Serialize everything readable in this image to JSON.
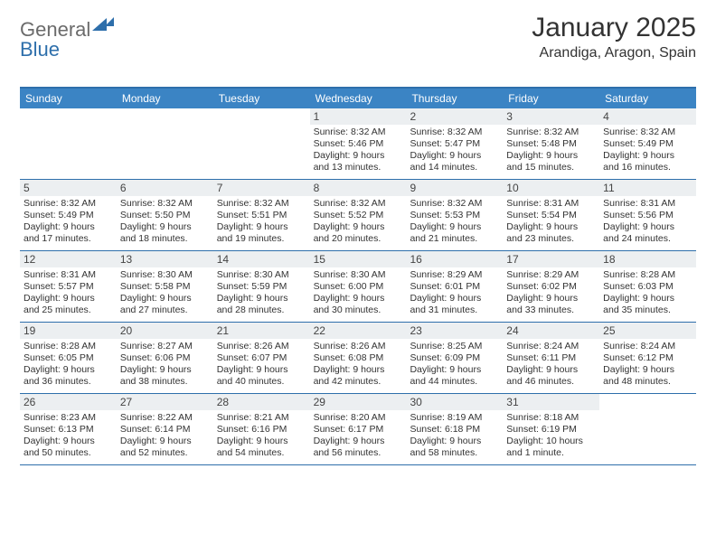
{
  "brand": {
    "part1": "General",
    "part2": "Blue"
  },
  "title": "January 2025",
  "location": "Arandiga, Aragon, Spain",
  "colors": {
    "header_bg": "#3b84c4",
    "accent": "#2e6fab",
    "daynum_bg": "#eceff1",
    "text": "#333333",
    "page_bg": "#ffffff"
  },
  "weekdays": [
    "Sunday",
    "Monday",
    "Tuesday",
    "Wednesday",
    "Thursday",
    "Friday",
    "Saturday"
  ],
  "weeks": [
    [
      null,
      null,
      null,
      {
        "n": "1",
        "sr": "8:32 AM",
        "ss": "5:46 PM",
        "dl": "9 hours and 13 minutes."
      },
      {
        "n": "2",
        "sr": "8:32 AM",
        "ss": "5:47 PM",
        "dl": "9 hours and 14 minutes."
      },
      {
        "n": "3",
        "sr": "8:32 AM",
        "ss": "5:48 PM",
        "dl": "9 hours and 15 minutes."
      },
      {
        "n": "4",
        "sr": "8:32 AM",
        "ss": "5:49 PM",
        "dl": "9 hours and 16 minutes."
      }
    ],
    [
      {
        "n": "5",
        "sr": "8:32 AM",
        "ss": "5:49 PM",
        "dl": "9 hours and 17 minutes."
      },
      {
        "n": "6",
        "sr": "8:32 AM",
        "ss": "5:50 PM",
        "dl": "9 hours and 18 minutes."
      },
      {
        "n": "7",
        "sr": "8:32 AM",
        "ss": "5:51 PM",
        "dl": "9 hours and 19 minutes."
      },
      {
        "n": "8",
        "sr": "8:32 AM",
        "ss": "5:52 PM",
        "dl": "9 hours and 20 minutes."
      },
      {
        "n": "9",
        "sr": "8:32 AM",
        "ss": "5:53 PM",
        "dl": "9 hours and 21 minutes."
      },
      {
        "n": "10",
        "sr": "8:31 AM",
        "ss": "5:54 PM",
        "dl": "9 hours and 23 minutes."
      },
      {
        "n": "11",
        "sr": "8:31 AM",
        "ss": "5:56 PM",
        "dl": "9 hours and 24 minutes."
      }
    ],
    [
      {
        "n": "12",
        "sr": "8:31 AM",
        "ss": "5:57 PM",
        "dl": "9 hours and 25 minutes."
      },
      {
        "n": "13",
        "sr": "8:30 AM",
        "ss": "5:58 PM",
        "dl": "9 hours and 27 minutes."
      },
      {
        "n": "14",
        "sr": "8:30 AM",
        "ss": "5:59 PM",
        "dl": "9 hours and 28 minutes."
      },
      {
        "n": "15",
        "sr": "8:30 AM",
        "ss": "6:00 PM",
        "dl": "9 hours and 30 minutes."
      },
      {
        "n": "16",
        "sr": "8:29 AM",
        "ss": "6:01 PM",
        "dl": "9 hours and 31 minutes."
      },
      {
        "n": "17",
        "sr": "8:29 AM",
        "ss": "6:02 PM",
        "dl": "9 hours and 33 minutes."
      },
      {
        "n": "18",
        "sr": "8:28 AM",
        "ss": "6:03 PM",
        "dl": "9 hours and 35 minutes."
      }
    ],
    [
      {
        "n": "19",
        "sr": "8:28 AM",
        "ss": "6:05 PM",
        "dl": "9 hours and 36 minutes."
      },
      {
        "n": "20",
        "sr": "8:27 AM",
        "ss": "6:06 PM",
        "dl": "9 hours and 38 minutes."
      },
      {
        "n": "21",
        "sr": "8:26 AM",
        "ss": "6:07 PM",
        "dl": "9 hours and 40 minutes."
      },
      {
        "n": "22",
        "sr": "8:26 AM",
        "ss": "6:08 PM",
        "dl": "9 hours and 42 minutes."
      },
      {
        "n": "23",
        "sr": "8:25 AM",
        "ss": "6:09 PM",
        "dl": "9 hours and 44 minutes."
      },
      {
        "n": "24",
        "sr": "8:24 AM",
        "ss": "6:11 PM",
        "dl": "9 hours and 46 minutes."
      },
      {
        "n": "25",
        "sr": "8:24 AM",
        "ss": "6:12 PM",
        "dl": "9 hours and 48 minutes."
      }
    ],
    [
      {
        "n": "26",
        "sr": "8:23 AM",
        "ss": "6:13 PM",
        "dl": "9 hours and 50 minutes."
      },
      {
        "n": "27",
        "sr": "8:22 AM",
        "ss": "6:14 PM",
        "dl": "9 hours and 52 minutes."
      },
      {
        "n": "28",
        "sr": "8:21 AM",
        "ss": "6:16 PM",
        "dl": "9 hours and 54 minutes."
      },
      {
        "n": "29",
        "sr": "8:20 AM",
        "ss": "6:17 PM",
        "dl": "9 hours and 56 minutes."
      },
      {
        "n": "30",
        "sr": "8:19 AM",
        "ss": "6:18 PM",
        "dl": "9 hours and 58 minutes."
      },
      {
        "n": "31",
        "sr": "8:18 AM",
        "ss": "6:19 PM",
        "dl": "10 hours and 1 minute."
      },
      null
    ]
  ],
  "labels": {
    "sunrise": "Sunrise: ",
    "sunset": "Sunset: ",
    "daylight": "Daylight: "
  }
}
